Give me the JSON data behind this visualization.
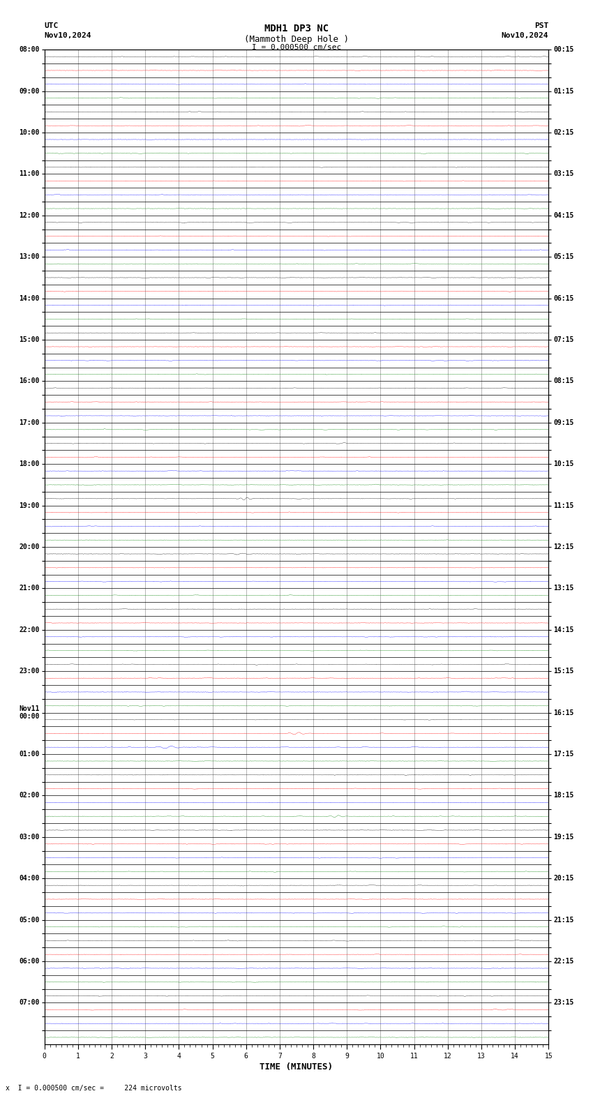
{
  "title_line1": "MDH1 DP3 NC",
  "title_line2": "(Mammoth Deep Hole )",
  "scale_label": "I = 0.000500 cm/sec",
  "utc_label": "UTC",
  "utc_date": "Nov10,2024",
  "pst_label": "PST",
  "pst_date": "Nov10,2024",
  "xlabel": "TIME (MINUTES)",
  "bottom_note": "x  I = 0.000500 cm/sec =     224 microvolts",
  "left_times": [
    "08:00",
    "",
    "",
    "09:00",
    "",
    "",
    "10:00",
    "",
    "",
    "11:00",
    "",
    "",
    "12:00",
    "",
    "",
    "13:00",
    "",
    "",
    "14:00",
    "",
    "",
    "15:00",
    "",
    "",
    "16:00",
    "",
    "",
    "17:00",
    "",
    "",
    "18:00",
    "",
    "",
    "19:00",
    "",
    "",
    "20:00",
    "",
    "",
    "21:00",
    "",
    "",
    "22:00",
    "",
    "",
    "23:00",
    "",
    "",
    "Nov11\n00:00",
    "",
    "",
    "01:00",
    "",
    "",
    "02:00",
    "",
    "",
    "03:00",
    "",
    "",
    "04:00",
    "",
    "",
    "05:00",
    "",
    "",
    "06:00",
    "",
    "",
    "07:00",
    "",
    ""
  ],
  "right_times": [
    "00:15",
    "",
    "",
    "01:15",
    "",
    "",
    "02:15",
    "",
    "",
    "03:15",
    "",
    "",
    "04:15",
    "",
    "",
    "05:15",
    "",
    "",
    "06:15",
    "",
    "",
    "07:15",
    "",
    "",
    "08:15",
    "",
    "",
    "09:15",
    "",
    "",
    "10:15",
    "",
    "",
    "11:15",
    "",
    "",
    "12:15",
    "",
    "",
    "13:15",
    "",
    "",
    "14:15",
    "",
    "",
    "15:15",
    "",
    "",
    "16:15",
    "",
    "",
    "17:15",
    "",
    "",
    "18:15",
    "",
    "",
    "19:15",
    "",
    "",
    "20:15",
    "",
    "",
    "21:15",
    "",
    "",
    "22:15",
    "",
    "",
    "23:15",
    "",
    ""
  ],
  "n_rows": 72,
  "n_minutes": 15,
  "row_colors": [
    "black",
    "red",
    "blue",
    "green"
  ],
  "bg_color": "white",
  "grid_color": "#999999",
  "axis_color": "black",
  "title_fontsize": 10,
  "label_fontsize": 8,
  "tick_fontsize": 7,
  "note_fontsize": 7
}
